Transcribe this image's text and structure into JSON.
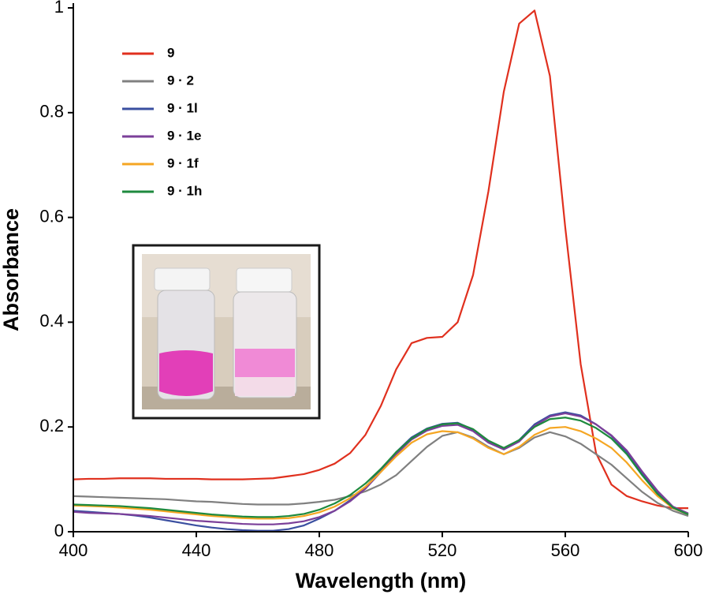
{
  "chart_data": {
    "type": "line",
    "xlabel": "Wavelength (nm)",
    "ylabel": "Absorbance",
    "x": [
      400,
      405,
      410,
      415,
      420,
      425,
      430,
      435,
      440,
      445,
      450,
      455,
      460,
      465,
      470,
      475,
      480,
      485,
      490,
      495,
      500,
      505,
      510,
      515,
      520,
      525,
      530,
      535,
      540,
      545,
      550,
      555,
      560,
      565,
      570,
      575,
      580,
      585,
      590,
      595,
      600
    ],
    "series": [
      {
        "name": "9",
        "color": "#e0301e",
        "values": [
          0.1,
          0.101,
          0.101,
          0.102,
          0.102,
          0.102,
          0.101,
          0.101,
          0.101,
          0.1,
          0.1,
          0.1,
          0.101,
          0.102,
          0.106,
          0.11,
          0.118,
          0.13,
          0.15,
          0.185,
          0.24,
          0.31,
          0.36,
          0.37,
          0.372,
          0.4,
          0.49,
          0.65,
          0.84,
          0.97,
          0.995,
          0.87,
          0.58,
          0.32,
          0.15,
          0.09,
          0.068,
          0.058,
          0.05,
          0.045,
          0.045
        ]
      },
      {
        "name": "9 · 2",
        "color": "#808080",
        "values": [
          0.068,
          0.067,
          0.066,
          0.065,
          0.064,
          0.063,
          0.062,
          0.06,
          0.058,
          0.057,
          0.055,
          0.053,
          0.052,
          0.052,
          0.052,
          0.054,
          0.057,
          0.061,
          0.068,
          0.077,
          0.09,
          0.108,
          0.135,
          0.162,
          0.183,
          0.19,
          0.18,
          0.162,
          0.148,
          0.16,
          0.18,
          0.19,
          0.182,
          0.168,
          0.148,
          0.128,
          0.102,
          0.076,
          0.055,
          0.04,
          0.03
        ]
      },
      {
        "name": "9 · 1l",
        "color": "#3a4fa0",
        "values": [
          0.04,
          0.038,
          0.036,
          0.034,
          0.031,
          0.027,
          0.022,
          0.017,
          0.012,
          0.008,
          0.005,
          0.003,
          0.002,
          0.002,
          0.005,
          0.012,
          0.025,
          0.04,
          0.06,
          0.085,
          0.118,
          0.152,
          0.18,
          0.197,
          0.206,
          0.208,
          0.195,
          0.172,
          0.158,
          0.175,
          0.205,
          0.222,
          0.228,
          0.222,
          0.205,
          0.183,
          0.152,
          0.112,
          0.075,
          0.045,
          0.033
        ]
      },
      {
        "name": "9 · 1e",
        "color": "#7b3f99",
        "values": [
          0.038,
          0.036,
          0.035,
          0.034,
          0.032,
          0.03,
          0.027,
          0.024,
          0.021,
          0.019,
          0.017,
          0.015,
          0.014,
          0.014,
          0.016,
          0.02,
          0.028,
          0.04,
          0.058,
          0.082,
          0.114,
          0.148,
          0.176,
          0.193,
          0.202,
          0.204,
          0.192,
          0.17,
          0.157,
          0.172,
          0.202,
          0.22,
          0.226,
          0.22,
          0.205,
          0.184,
          0.155,
          0.115,
          0.078,
          0.048,
          0.035
        ]
      },
      {
        "name": "9 · 1f",
        "color": "#f5a623",
        "values": [
          0.05,
          0.049,
          0.048,
          0.046,
          0.044,
          0.042,
          0.039,
          0.036,
          0.033,
          0.03,
          0.028,
          0.026,
          0.025,
          0.025,
          0.026,
          0.03,
          0.037,
          0.048,
          0.064,
          0.086,
          0.114,
          0.144,
          0.17,
          0.186,
          0.192,
          0.19,
          0.178,
          0.16,
          0.148,
          0.162,
          0.185,
          0.198,
          0.2,
          0.192,
          0.178,
          0.16,
          0.132,
          0.098,
          0.068,
          0.045,
          0.033
        ]
      },
      {
        "name": "9 · 1h",
        "color": "#1e8a3e",
        "values": [
          0.052,
          0.051,
          0.05,
          0.049,
          0.047,
          0.045,
          0.042,
          0.039,
          0.036,
          0.033,
          0.031,
          0.029,
          0.028,
          0.028,
          0.03,
          0.034,
          0.042,
          0.054,
          0.07,
          0.092,
          0.12,
          0.152,
          0.178,
          0.196,
          0.205,
          0.207,
          0.196,
          0.174,
          0.16,
          0.175,
          0.2,
          0.215,
          0.218,
          0.212,
          0.198,
          0.178,
          0.148,
          0.108,
          0.072,
          0.046,
          0.033
        ]
      }
    ],
    "xlim": [
      400,
      600
    ],
    "xticks": [
      400,
      440,
      480,
      520,
      560,
      600
    ],
    "ylim": [
      0,
      1
    ],
    "yticks": [
      0,
      0.2,
      0.4,
      0.6,
      0.8,
      1
    ],
    "legend": "upper-left"
  }
}
